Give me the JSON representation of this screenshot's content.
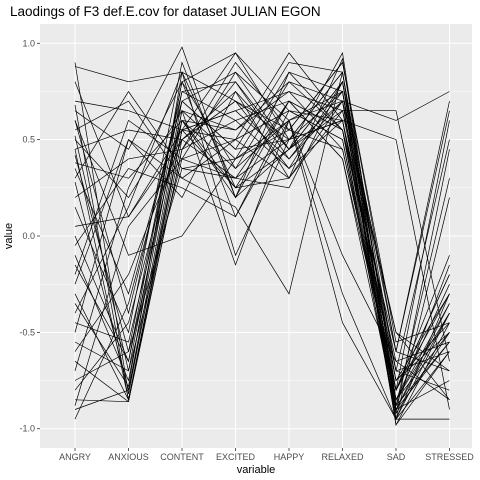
{
  "chart_data": {
    "type": "line",
    "title": "Laodings of F3 def.E.cov for dataset JULIAN EGON",
    "xlabel": "variable",
    "ylabel": "value",
    "categories": [
      "ANGRY",
      "ANXIOUS",
      "CONTENT",
      "EXCITED",
      "HAPPY",
      "RELAXED",
      "SAD",
      "STRESSED"
    ],
    "ylim": [
      -1.1,
      1.1
    ],
    "yticks": [
      1.0,
      0.5,
      0.0,
      -0.5,
      -1.0
    ],
    "ytick_labels": [
      "1.0",
      "0.5",
      "0.0",
      "-0.5",
      "-1.0"
    ],
    "grid": true,
    "panel_background": "#ebebeb",
    "grid_color": "#ffffff",
    "line_color": "#000000",
    "series": [
      {
        "values": [
          0.9,
          -0.82,
          0.6,
          0.35,
          0.8,
          0.55,
          -0.95,
          -0.4
        ]
      },
      {
        "values": [
          0.88,
          0.8,
          0.85,
          0.25,
          0.3,
          0.7,
          0.6,
          0.75
        ]
      },
      {
        "values": [
          0.7,
          0.65,
          0.55,
          0.95,
          0.5,
          0.85,
          -0.8,
          -0.2
        ]
      },
      {
        "values": [
          0.68,
          -0.85,
          0.45,
          0.6,
          0.7,
          0.4,
          -0.9,
          -0.35
        ]
      },
      {
        "values": [
          0.65,
          0.45,
          0.98,
          0.2,
          0.85,
          0.75,
          -0.7,
          -0.6
        ]
      },
      {
        "values": [
          0.6,
          -0.4,
          0.75,
          0.8,
          0.45,
          0.95,
          -0.85,
          -0.5
        ]
      },
      {
        "values": [
          0.55,
          0.7,
          0.3,
          0.5,
          0.95,
          0.6,
          0.5,
          -0.9
        ]
      },
      {
        "values": [
          0.52,
          -0.7,
          0.4,
          0.85,
          0.6,
          0.7,
          -0.98,
          -0.45
        ]
      },
      {
        "values": [
          0.5,
          0.2,
          0.65,
          0.4,
          0.55,
          0.9,
          -0.6,
          0.65
        ]
      },
      {
        "values": [
          0.45,
          0.55,
          0.5,
          0.7,
          0.35,
          0.8,
          -0.75,
          -0.3
        ]
      },
      {
        "values": [
          0.42,
          -0.6,
          0.8,
          0.1,
          0.65,
          0.5,
          -0.92,
          0.45
        ]
      },
      {
        "values": [
          0.38,
          0.3,
          0.6,
          0.55,
          0.75,
          0.65,
          -0.5,
          -0.7
        ]
      },
      {
        "values": [
          0.35,
          -0.3,
          0.7,
          0.45,
          0.9,
          0.85,
          -0.88,
          -0.15
        ]
      },
      {
        "values": [
          0.3,
          0.75,
          0.35,
          0.3,
          0.5,
          0.6,
          -0.65,
          -0.55
        ]
      },
      {
        "values": [
          0.28,
          -0.8,
          0.55,
          0.65,
          0.4,
          0.75,
          -0.95,
          -0.6
        ]
      },
      {
        "values": [
          0.2,
          0.4,
          0.45,
          0.9,
          0.55,
          0.45,
          -0.8,
          0.6
        ]
      },
      {
        "values": [
          0.15,
          -0.5,
          0.9,
          0.2,
          0.7,
          0.55,
          -0.7,
          -0.8
        ]
      },
      {
        "values": [
          0.05,
          0.1,
          0.5,
          0.75,
          0.3,
          0.92,
          -0.85,
          -0.25
        ]
      },
      {
        "values": [
          0.0,
          -0.65,
          0.65,
          0.55,
          0.8,
          0.7,
          -0.9,
          -0.4
        ]
      },
      {
        "values": [
          -0.05,
          0.35,
          0.25,
          0.1,
          0.6,
          -0.45,
          -0.95,
          -0.95
        ]
      },
      {
        "values": [
          -0.1,
          -0.75,
          0.7,
          0.85,
          0.45,
          0.65,
          -0.75,
          -0.5
        ]
      },
      {
        "values": [
          -0.2,
          0.6,
          0.4,
          0.3,
          0.25,
          0.8,
          -0.6,
          0.7
        ]
      },
      {
        "values": [
          -0.3,
          -0.85,
          0.55,
          0.5,
          0.65,
          0.5,
          -0.85,
          -0.35
        ]
      },
      {
        "values": [
          -0.4,
          0.15,
          0.85,
          -0.1,
          0.5,
          0.75,
          -0.98,
          -0.6
        ]
      },
      {
        "values": [
          -0.45,
          -0.55,
          0.6,
          0.25,
          0.7,
          0.4,
          -0.8,
          -0.2
        ]
      },
      {
        "values": [
          -0.5,
          0.5,
          0.3,
          0.15,
          -0.3,
          0.85,
          -0.7,
          0.5
        ]
      },
      {
        "values": [
          -0.55,
          -0.7,
          0.75,
          0.6,
          0.35,
          0.6,
          -0.9,
          -0.75
        ]
      },
      {
        "values": [
          -0.6,
          -0.2,
          0.5,
          0.7,
          0.55,
          0.9,
          -0.55,
          -0.45
        ]
      },
      {
        "values": [
          -0.65,
          -0.86,
          0.45,
          0.8,
          0.4,
          0.7,
          -0.95,
          -0.3
        ]
      },
      {
        "values": [
          -0.7,
          0.25,
          0.8,
          0.35,
          0.6,
          -0.1,
          -0.65,
          -0.85
        ]
      },
      {
        "values": [
          -0.75,
          -0.6,
          0.35,
          0.4,
          0.85,
          0.55,
          -0.88,
          0.3
        ]
      },
      {
        "values": [
          -0.8,
          -0.45,
          0.6,
          0.2,
          0.45,
          0.8,
          -0.92,
          -0.5
        ]
      },
      {
        "values": [
          -0.85,
          -0.86,
          0.55,
          0.65,
          0.75,
          0.45,
          -0.8,
          -0.1
        ]
      },
      {
        "values": [
          -0.88,
          0.05,
          0.4,
          0.5,
          0.3,
          0.65,
          0.65,
          -0.65
        ]
      },
      {
        "values": [
          -0.9,
          -0.8,
          0.65,
          -0.15,
          0.6,
          0.75,
          -0.85,
          -0.4
        ]
      },
      {
        "values": [
          -0.95,
          -0.35,
          0.7,
          0.45,
          0.5,
          0.85,
          -0.9,
          -0.55
        ]
      },
      {
        "values": [
          0.6,
          -0.1,
          0.0,
          0.4,
          0.6,
          -0.3,
          -0.95,
          0.2
        ]
      },
      {
        "values": [
          -0.35,
          -0.78,
          0.85,
          0.7,
          0.5,
          0.6,
          -0.75,
          -0.45
        ]
      },
      {
        "values": [
          0.8,
          0.1,
          0.55,
          0.25,
          0.45,
          0.7,
          -0.5,
          -0.85
        ]
      },
      {
        "values": [
          -0.15,
          -0.65,
          0.8,
          0.95,
          0.65,
          0.6,
          -0.8,
          -0.3
        ]
      },
      {
        "values": [
          0.45,
          -0.85,
          0.5,
          0.3,
          0.7,
          0.55,
          -0.6,
          -0.7
        ]
      },
      {
        "values": [
          -0.25,
          0.5,
          0.2,
          0.75,
          0.45,
          0.8,
          -0.88,
          -0.55
        ]
      }
    ]
  }
}
